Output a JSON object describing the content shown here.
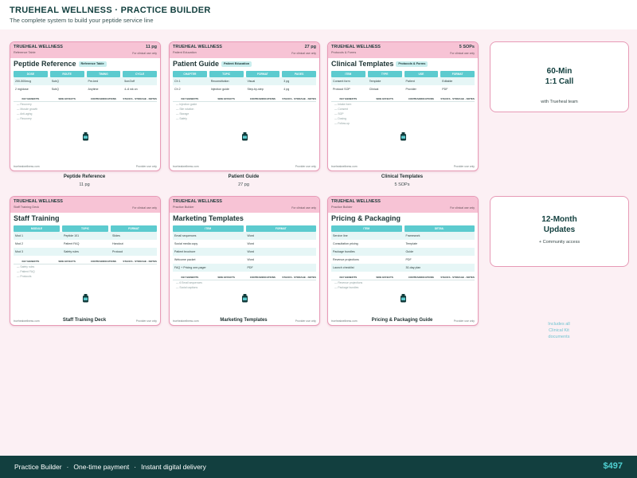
{
  "header": {
    "title": "TRUEHEAL WELLNESS · PRACTICE BUILDER",
    "subtitle": "The complete system to build your peptide service line"
  },
  "cards": [
    {
      "brand": "TRUEHEAL WELLNESS",
      "doc_label": "Reference Table",
      "count": "11 pg",
      "clinical": "For clinical use only",
      "heading": "Peptide Reference",
      "tag": "Reference Table",
      "columns": [
        "DOSE",
        "ROUTE",
        "TIMING",
        "CYCLE"
      ],
      "rows": [
        [
          "200-500mcg",
          "SubQ",
          "Pre-bed",
          "5on/2off"
        ],
        [
          "2 mg/dose",
          "SubQ",
          "Anytime",
          "4–6 wk on"
        ]
      ],
      "notes_headers": [
        "KEY BENEFITS",
        "SIDE EFFECTS",
        "CONTRAINDICATIONS",
        "STACKS · STORAGE · NOTES"
      ],
      "bullets": [
        "— Recovery",
        "— Muscle growth",
        "— Anti-aging",
        "— Recovery"
      ],
      "footer_left": "truehealwellness.com",
      "footer_right": "Provider use only",
      "caption": "Peptide Reference",
      "sub_caption": "11 pg"
    },
    {
      "brand": "TRUEHEAL WELLNESS",
      "doc_label": "Patient Education",
      "count": "27 pg",
      "clinical": "For clinical use only",
      "heading": "Patient Guide",
      "tag": "Patient Education",
      "columns": [
        "CHAPTER",
        "TOPIC",
        "FORMAT",
        "PAGES"
      ],
      "rows": [
        [
          "Ch 1",
          "Reconstitution",
          "Visual",
          "3 pg"
        ],
        [
          "Ch 2",
          "Injection guide",
          "Step-by-step",
          "4 pg"
        ]
      ],
      "notes_headers": [
        "KEY BENEFITS",
        "SIDE EFFECTS",
        "CONTRAINDICATIONS",
        "STACKS · STORAGE · NOTES"
      ],
      "bullets": [
        "— Injection guide",
        "— Site rotation",
        "— Storage",
        "— Safety"
      ],
      "footer_left": "truehealwellness.com",
      "footer_right": "Provider use only",
      "caption": "Patient Guide",
      "sub_caption": "27 pg"
    },
    {
      "brand": "TRUEHEAL WELLNESS",
      "doc_label": "Protocols & Forms",
      "count": "5 SOPs",
      "clinical": "For clinical use only",
      "heading": "Clinical Templates",
      "tag": "Protocols & Forms",
      "columns": [
        "ITEM",
        "TYPE",
        "USE",
        "FORMAT"
      ],
      "rows": [
        [
          "Consent form",
          "Template",
          "Patient",
          "Editable"
        ],
        [
          "Protocol SOP",
          "Clinical",
          "Provider",
          "PDF"
        ]
      ],
      "notes_headers": [
        "KEY BENEFITS",
        "SIDE EFFECTS",
        "CONTRAINDICATIONS",
        "STACKS · STORAGE · NOTES"
      ],
      "bullets": [
        "— Intake form",
        "— Consent",
        "— SOP",
        "— Dosing",
        "— Follow-up"
      ],
      "footer_left": "truehealwellness.com",
      "footer_right": "Provider use only",
      "caption": "Clinical Templates",
      "sub_caption": "5 SOPs"
    },
    {
      "brand": "TRUEHEAL WELLNESS",
      "doc_label": "Staff Training Deck",
      "count": "",
      "clinical": "For clinical use only",
      "heading": "Staff Training",
      "tag": "",
      "columns": [
        "MODULE",
        "TOPIC",
        "FORMAT"
      ],
      "rows": [
        [
          "Mod 1",
          "Peptide 101",
          "Slides"
        ],
        [
          "Mod 2",
          "Patient FAQ",
          "Handout"
        ],
        [
          "Mod 3",
          "Safety rules",
          "Protocol"
        ]
      ],
      "notes_headers": [
        "KEY BENEFITS",
        "SIDE EFFECTS",
        "CONTRAINDICATIONS",
        "STACKS · STORAGE · NOTES"
      ],
      "bullets": [
        "— Safety rules",
        "— Patient FAQ",
        "— Protocols"
      ],
      "footer_left": "truehealwellness.com",
      "footer_right": "Provider use only",
      "caption": "Staff Training Deck",
      "sub_caption": ""
    },
    {
      "brand": "TRUEHEAL WELLNESS",
      "doc_label": "Practice Builder",
      "count": "",
      "clinical": "For clinical use only",
      "heading": "Marketing Templates",
      "tag": "",
      "columns": [
        "ITEM",
        "FORMAT"
      ],
      "rows": [
        [
          "Email sequences",
          "Word"
        ],
        [
          "Social media copy",
          "Word"
        ],
        [
          "Patient brochure",
          "Word"
        ],
        [
          "Welcome packet",
          "Word"
        ],
        [
          "FAQ + Pricing one-pager",
          "PDF"
        ]
      ],
      "notes_headers": [
        "KEY BENEFITS",
        "SIDE EFFECTS",
        "CONTRAINDICATIONS",
        "STACKS · STORAGE · NOTES"
      ],
      "bullets": [
        "— 6 Email sequences",
        "— Social captions"
      ],
      "footer_left": "truehealwellness.com",
      "footer_right": "Provider use only",
      "caption": "Marketing Templates",
      "sub_caption": ""
    },
    {
      "brand": "TRUEHEAL WELLNESS",
      "doc_label": "Practice Builder",
      "count": "",
      "clinical": "For clinical use only",
      "heading": "Pricing & Packaging",
      "tag": "",
      "columns": [
        "ITEM",
        "DETAIL"
      ],
      "rows": [
        [
          "Service line",
          "Framework"
        ],
        [
          "Consultation pricing",
          "Template"
        ],
        [
          "Package bundles",
          "Guide"
        ],
        [
          "Revenue projections",
          "PDF"
        ],
        [
          "Launch checklist",
          "30-day plan"
        ]
      ],
      "notes_headers": [
        "KEY BENEFITS",
        "SIDE EFFECTS",
        "CONTRAINDICATIONS",
        "STACKS · STORAGE · NOTES"
      ],
      "bullets": [
        "— Revenue projections",
        "— Package bundles"
      ],
      "footer_left": "truehealwellness.com",
      "footer_right": "Provider use only",
      "caption": "Pricing & Packaging Guide",
      "sub_caption": ""
    }
  ],
  "bonus": [
    {
      "title_line1": "60-Min",
      "title_line2": "1:1 Call",
      "sub": "with Trueheal team"
    },
    {
      "title_line1": "12-Month",
      "title_line2": "Updates",
      "sub": "+ Community access"
    }
  ],
  "includes_note": [
    "Includes all",
    "Clinical Kit",
    "documents"
  ],
  "footer": {
    "left_items": [
      "Practice Builder",
      "One-time payment",
      "Instant digital delivery"
    ],
    "separator": "·",
    "price": "$497"
  },
  "colors": {
    "card_header": "#f7c3d5",
    "card_border": "#e79ab6",
    "table_header": "#5ccbcf",
    "footer_bg": "#123f3f",
    "price": "#4fd0d2"
  }
}
